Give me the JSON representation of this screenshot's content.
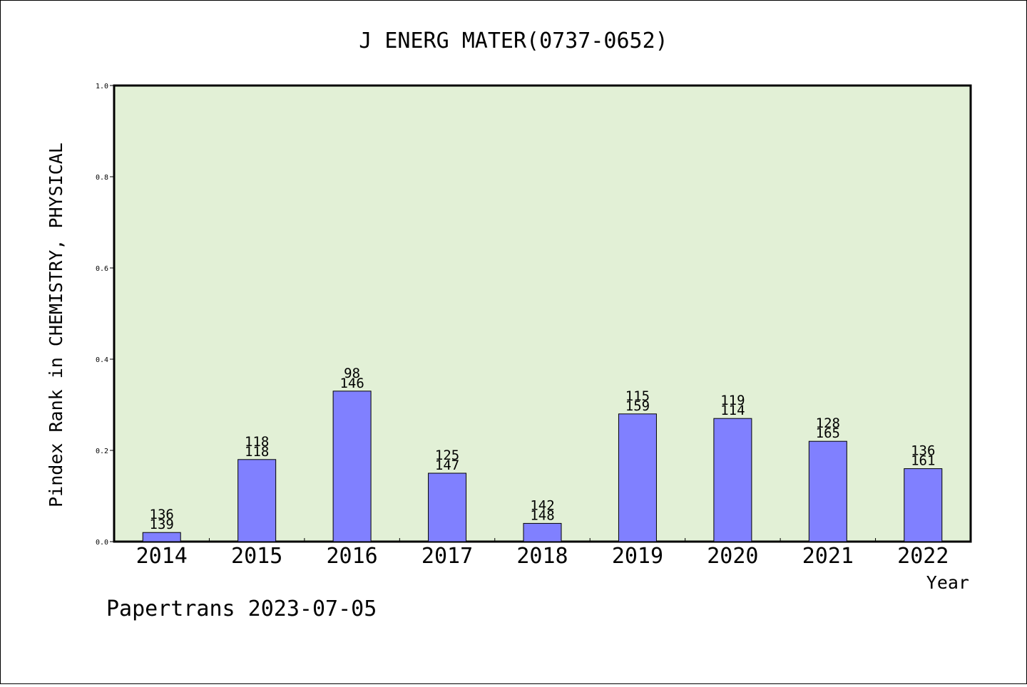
{
  "chart_data": {
    "type": "bar",
    "title": "J ENERG MATER(0737-0652)",
    "xlabel": "Year",
    "ylabel": "Pindex Rank in CHEMISTRY, PHYSICAL",
    "ylim": [
      0,
      1.0
    ],
    "yticks": [
      "0.0",
      "0.2",
      "0.4",
      "0.6",
      "0.8",
      "1.0"
    ],
    "categories": [
      "2014",
      "2015",
      "2016",
      "2017",
      "2018",
      "2019",
      "2020",
      "2021",
      "2022"
    ],
    "values": [
      0.02,
      0.18,
      0.33,
      0.15,
      0.04,
      0.28,
      0.27,
      0.22,
      0.16
    ],
    "labels_top": [
      "136",
      "118",
      "98",
      "125",
      "142",
      "115",
      "119",
      "128",
      "136"
    ],
    "labels_bottom": [
      "139",
      "118",
      "146",
      "147",
      "148",
      "159",
      "114",
      "165",
      "161"
    ],
    "grid": false,
    "colors": {
      "plot_background": "#e2f0d6",
      "bar_fill": "#8080ff",
      "bar_stroke": "#000000"
    }
  },
  "footer": {
    "text": "Papertrans 2023-07-05"
  }
}
